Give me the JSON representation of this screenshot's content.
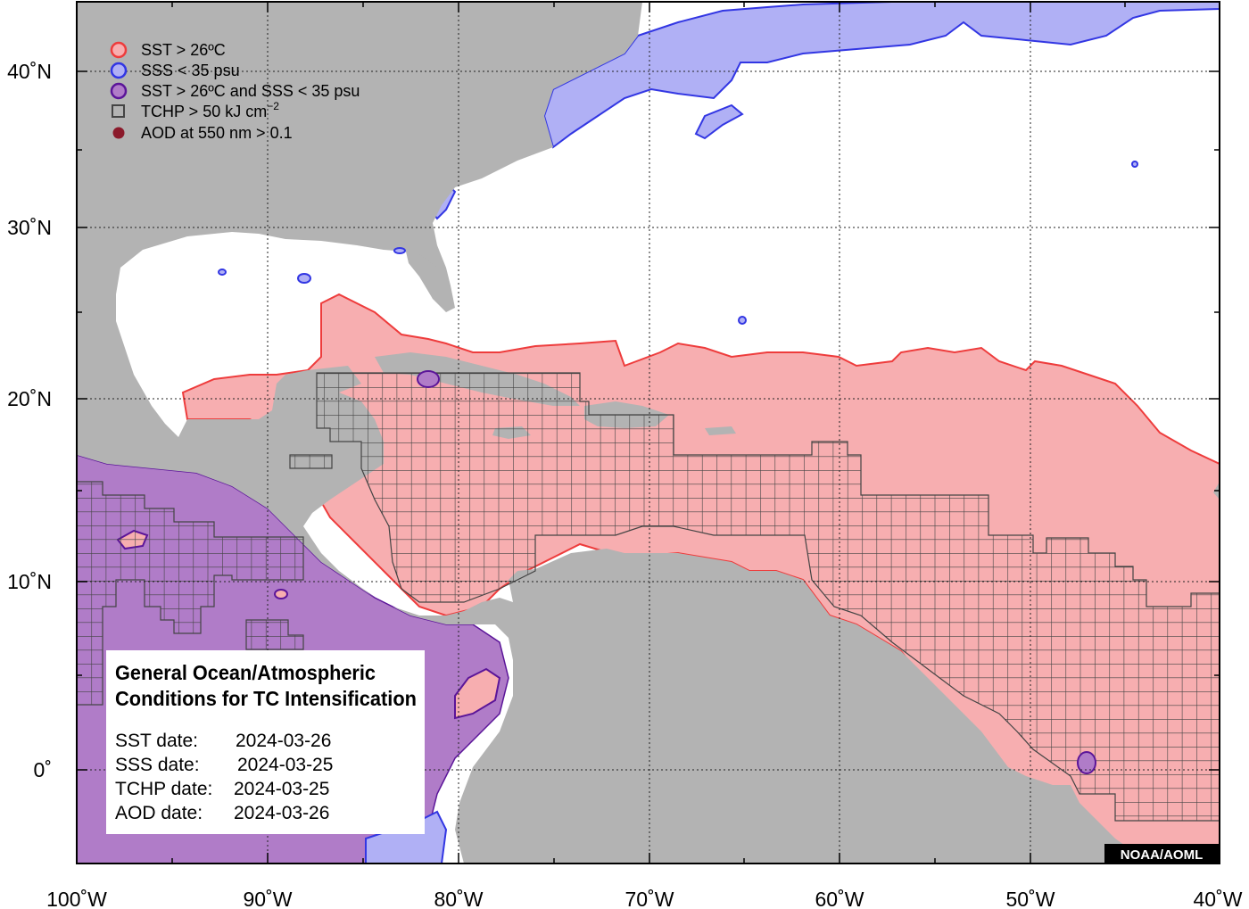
{
  "map": {
    "x_axis_labels": [
      "100˚W",
      "90˚W",
      "80˚W",
      "70˚W",
      "60˚W",
      "50˚W",
      "40˚W"
    ],
    "y_axis_labels": [
      "40˚N",
      "30˚N",
      "20˚N",
      "10˚N",
      "0˚"
    ],
    "colors": {
      "land": "#b3b3b3",
      "ocean": "#ffffff",
      "sst": "#f7aeb0",
      "sst_edge": "#ee3c3c",
      "sss": "#b0b0f5",
      "sss_edge": "#3236e3",
      "both": "#b07cc8",
      "both_edge": "#5b1599",
      "tchp_grid": "#444444",
      "aod": "#8b1a2b"
    }
  },
  "legend": {
    "items": [
      {
        "label": "SST > 26ºC",
        "icon": "sst-circle-icon"
      },
      {
        "label": "SSS < 35 psu",
        "icon": "sss-circle-icon"
      },
      {
        "label": "SST > 26ºC and SSS < 35 psu",
        "icon": "sst-sss-circle-icon"
      },
      {
        "label": "TCHP > 50 kJ cm",
        "superscript": "−2",
        "icon": "tchp-square-icon"
      },
      {
        "label": "AOD at 550 nm > 0.1",
        "icon": "aod-dot-icon"
      }
    ]
  },
  "info_box": {
    "title_line1": "General Ocean/Atmospheric",
    "title_line2": "Conditions for TC Intensification",
    "rows": [
      {
        "label": "SST date:",
        "value": "2024-03-26"
      },
      {
        "label": "SSS date:",
        "value": "2024-03-25"
      },
      {
        "label": "TCHP date:",
        "value": "2024-03-25"
      },
      {
        "label": "AOD date:",
        "value": "2024-03-26"
      }
    ]
  },
  "credit": "NOAA/AOML"
}
